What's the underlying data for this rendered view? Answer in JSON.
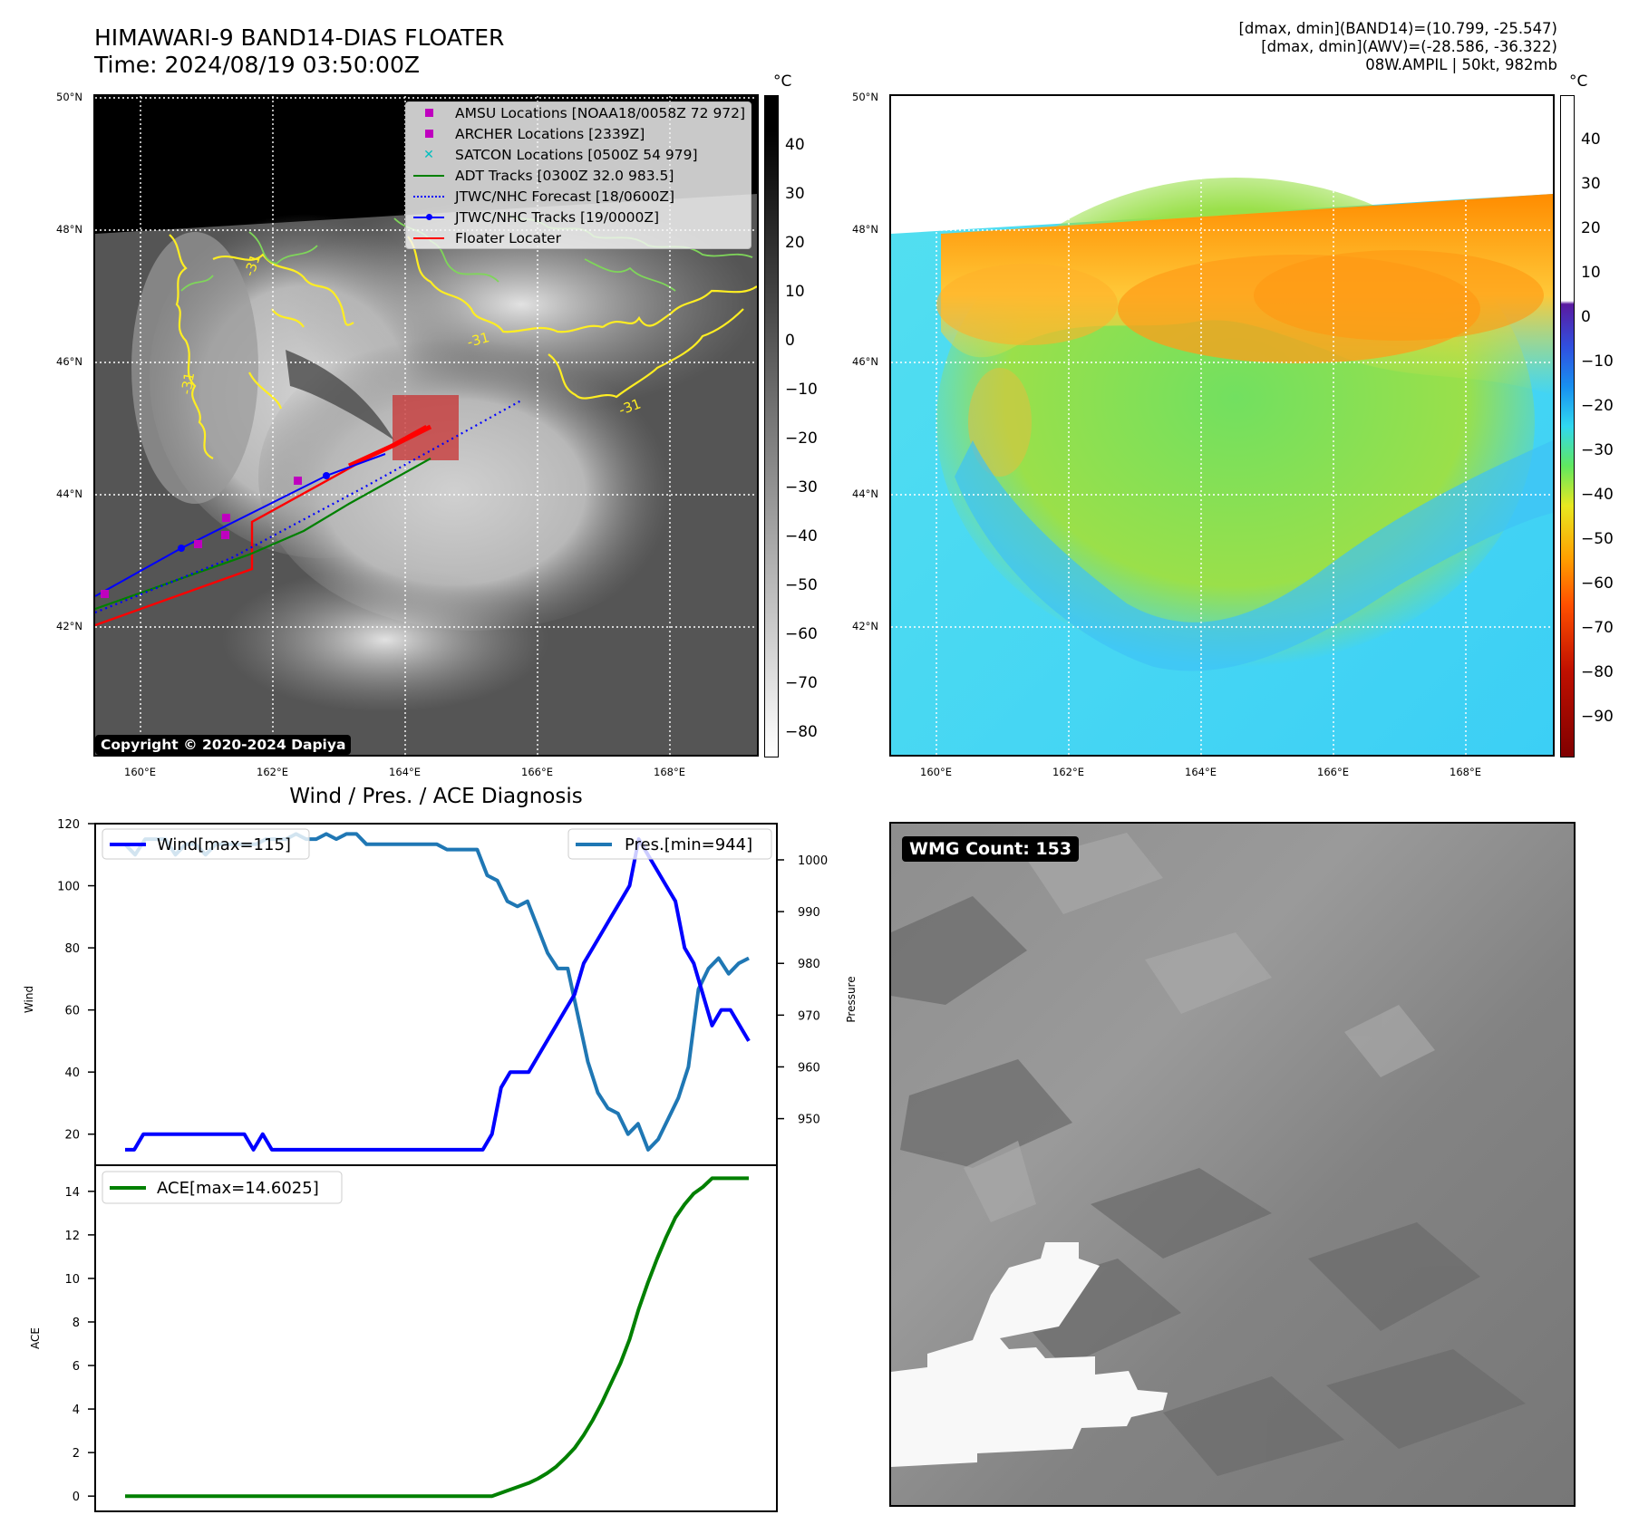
{
  "header": {
    "title_line1": "HIMAWARI-9 BAND14-DIAS FLOATER",
    "title_line2": "Time: 2024/08/19 03:50:00Z",
    "info_line1": "[dmax, dmin](BAND14)=(10.799, -25.547)",
    "info_line2": "[dmax, dmin](AWV)=(-28.586, -36.322)",
    "info_line3": "08W.AMPIL | 50kt, 982mb"
  },
  "ir_map": {
    "lat_ticks": [
      "50°N",
      "48°N",
      "46°N",
      "44°N",
      "42°N"
    ],
    "lon_ticks": [
      "160°E",
      "162°E",
      "164°E",
      "166°E",
      "168°E"
    ],
    "contour_label": "-31",
    "copyright": "Copyright © 2020-2024 Dapiya",
    "colorbar_unit": "°C",
    "colorbar_ticks": [
      "40",
      "30",
      "20",
      "10",
      "0",
      "−10",
      "−20",
      "−30",
      "−40",
      "−50",
      "−60",
      "−70",
      "−80"
    ],
    "legend": [
      {
        "label": "AMSU Locations [NOAA18/0058Z 72 972]",
        "marker": "square",
        "color": "#bf00bf"
      },
      {
        "label": "ARCHER Locations [2339Z]",
        "marker": "square",
        "color": "#bf00bf"
      },
      {
        "label": "SATCON Locations [0500Z 54 979]",
        "marker": "x",
        "color": "#00bfbf"
      },
      {
        "label": "ADT Tracks [0300Z 32.0 983.5]",
        "marker": "line",
        "color": "#008000"
      },
      {
        "label": "JTWC/NHC Forecast [18/0600Z]",
        "marker": "dotted",
        "color": "#0000ff"
      },
      {
        "label": "JTWC/NHC Tracks [19/0000Z]",
        "marker": "line-dot",
        "color": "#0000ff"
      },
      {
        "label": "Floater Locater",
        "marker": "line",
        "color": "#ff0000"
      }
    ]
  },
  "wv_map": {
    "lat_ticks": [
      "50°N",
      "48°N",
      "46°N",
      "44°N",
      "42°N"
    ],
    "lon_ticks": [
      "160°E",
      "162°E",
      "164°E",
      "166°E",
      "168°E"
    ],
    "colorbar_unit": "°C",
    "colorbar_ticks": [
      "40",
      "30",
      "20",
      "10",
      "0",
      "−10",
      "−20",
      "−30",
      "−40",
      "−50",
      "−60",
      "−70",
      "−80",
      "−90"
    ]
  },
  "diagnosis": {
    "title": "Wind / Pres. / ACE Diagnosis",
    "wind_axis_label": "Wind",
    "pressure_axis_label": "Pressure",
    "ace_axis_label": "ACE",
    "wind_ticks": [
      "120",
      "100",
      "80",
      "60",
      "40",
      "20"
    ],
    "pressure_ticks": [
      "1000",
      "990",
      "980",
      "970",
      "960",
      "950"
    ],
    "ace_ticks": [
      "14",
      "12",
      "10",
      "8",
      "6",
      "4",
      "2",
      "0"
    ],
    "wind_legend": "Wind[max=115]",
    "pressure_legend": "Pres.[min=944]",
    "ace_legend": "ACE[max=14.6025]"
  },
  "wmg": {
    "badge": "WMG Count: 153"
  },
  "chart_data": [
    {
      "type": "line",
      "title": "Wind / Pres. / ACE Diagnosis",
      "ylabel": "Wind",
      "ylim": [
        10,
        120
      ],
      "colors": {
        "wind": "#0000ff"
      },
      "series": [
        {
          "name": "Wind[max=115]",
          "values": [
            15,
            15,
            20,
            20,
            20,
            20,
            20,
            20,
            20,
            20,
            20,
            20,
            20,
            20,
            15,
            20,
            15,
            15,
            15,
            15,
            15,
            15,
            15,
            15,
            15,
            15,
            15,
            15,
            15,
            15,
            15,
            15,
            15,
            15,
            15,
            15,
            15,
            15,
            15,
            15,
            20,
            35,
            40,
            40,
            40,
            45,
            50,
            55,
            60,
            65,
            75,
            80,
            85,
            90,
            95,
            100,
            115,
            110,
            105,
            100,
            95,
            80,
            75,
            65,
            55,
            60,
            60,
            55,
            50
          ]
        }
      ]
    },
    {
      "type": "line",
      "ylabel": "Pressure",
      "ylim": [
        941,
        1007
      ],
      "colors": {
        "pressure": "#1f77b4"
      },
      "series": [
        {
          "name": "Pres.[min=944]",
          "values": [
            1003,
            1001,
            1004,
            1004,
            1004,
            1001,
            1003,
            1003,
            1001,
            1003,
            1003,
            1003,
            1003,
            1003,
            1004,
            1004,
            1004,
            1005,
            1004,
            1004,
            1005,
            1004,
            1005,
            1005,
            1003,
            1003,
            1003,
            1003,
            1003,
            1003,
            1003,
            1003,
            1002,
            1002,
            1002,
            1002,
            997,
            996,
            992,
            991,
            992,
            987,
            982,
            979,
            979,
            970,
            961,
            955,
            952,
            951,
            947,
            949,
            944,
            946,
            950,
            954,
            960,
            975,
            979,
            981,
            978,
            980,
            981
          ]
        }
      ]
    },
    {
      "type": "line",
      "ylabel": "ACE",
      "ylim": [
        -0.7,
        15.2
      ],
      "colors": {
        "ace": "#008000"
      },
      "series": [
        {
          "name": "ACE[max=14.6025]",
          "values": [
            0,
            0,
            0,
            0,
            0,
            0,
            0,
            0,
            0,
            0,
            0,
            0,
            0,
            0,
            0,
            0,
            0,
            0,
            0,
            0,
            0,
            0,
            0,
            0,
            0,
            0,
            0,
            0,
            0,
            0,
            0,
            0,
            0,
            0,
            0,
            0,
            0,
            0,
            0,
            0,
            0,
            0.15,
            0.3,
            0.45,
            0.6,
            0.8,
            1.05,
            1.35,
            1.75,
            2.2,
            2.8,
            3.5,
            4.3,
            5.2,
            6.1,
            7.2,
            8.6,
            9.8,
            10.9,
            11.9,
            12.8,
            13.4,
            13.9,
            14.2,
            14.6,
            14.6,
            14.6,
            14.6,
            14.6025
          ]
        }
      ]
    }
  ]
}
